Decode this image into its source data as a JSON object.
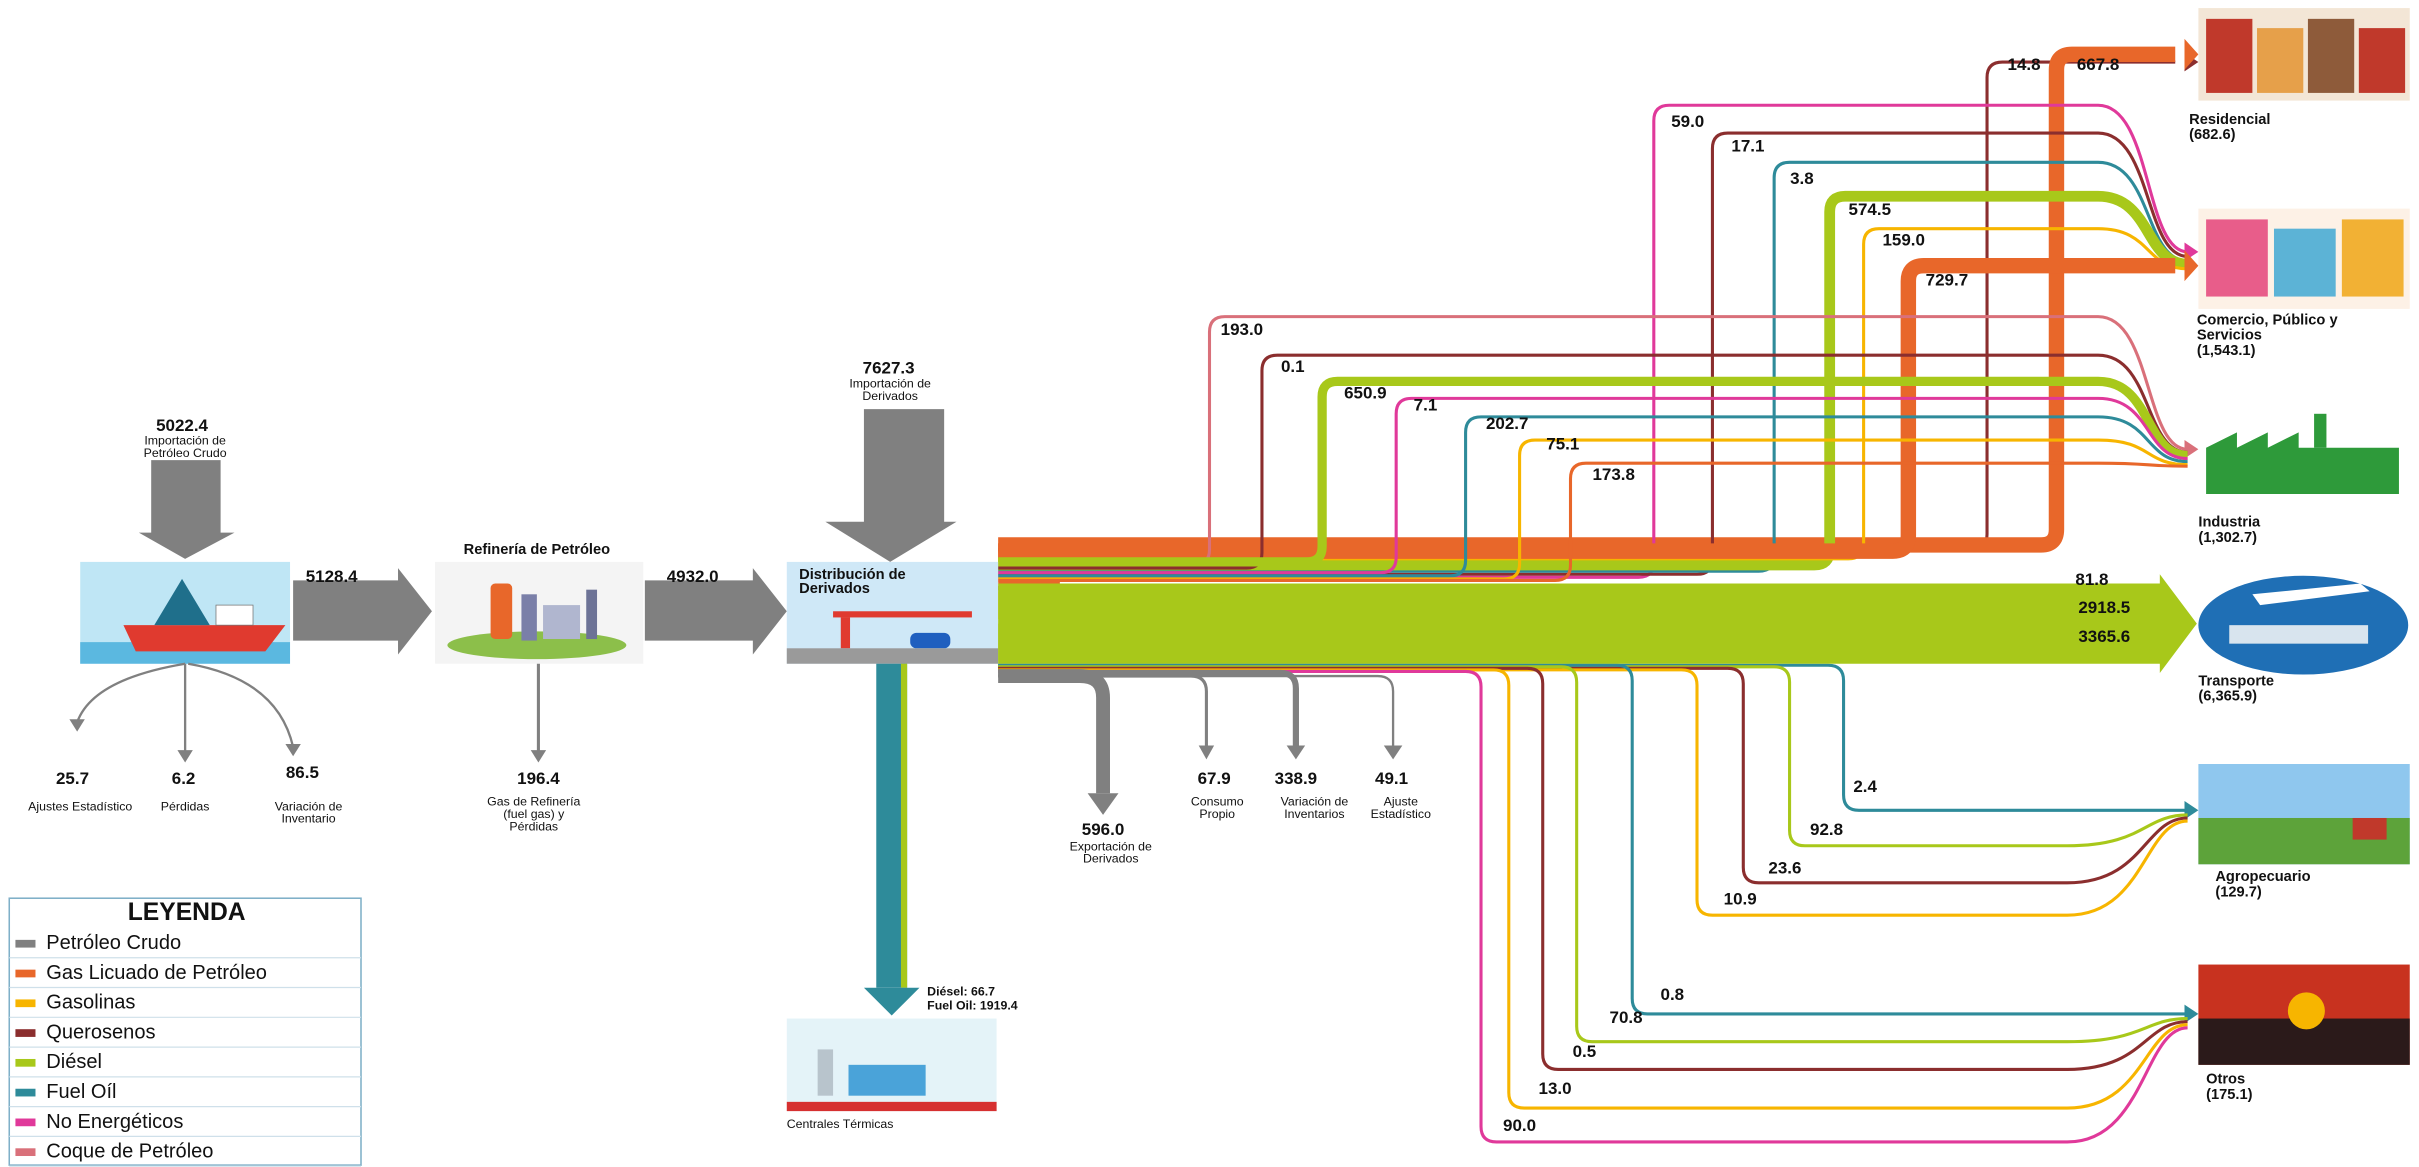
{
  "inputs": {
    "crude_import": {
      "value": "5022.4",
      "label": [
        "Importación de",
        "Petróleo Crudo"
      ]
    },
    "derivatives_import": {
      "value": "7627.3",
      "label": [
        "Importación de",
        "Derivados"
      ]
    }
  },
  "stages": {
    "crude_to_refinery": "5128.4",
    "refinery_title": "Refinería de Petróleo",
    "refinery_to_distribution": "4932.0",
    "distribution_title": [
      "Distribución de",
      "Derivados"
    ]
  },
  "crude_outputs": [
    {
      "value": "25.7",
      "label": [
        "Ajustes Estadístico"
      ]
    },
    {
      "value": "6.2",
      "label": [
        "Pérdidas"
      ]
    },
    {
      "value": "86.5",
      "label": [
        "Variación de",
        "Inventario"
      ]
    }
  ],
  "refinery_output": {
    "value": "196.4",
    "label": [
      "Gas de Refinería",
      "(fuel gas) y",
      "Pérdidas"
    ]
  },
  "distribution_outputs": [
    {
      "value": "596.0",
      "label": [
        "Exportación de",
        "Derivados"
      ]
    },
    {
      "value": "67.9",
      "label": [
        "Consumo",
        "Propio"
      ]
    },
    {
      "value": "338.9",
      "label": [
        "Variación de",
        "Inventarios"
      ]
    },
    {
      "value": "49.1",
      "label": [
        "Ajuste",
        "Estadístico"
      ]
    }
  ],
  "thermal": {
    "lines": [
      "Diésel: 66.7",
      "Fuel Oil: 1919.4"
    ],
    "label": "Centrales Térmicas"
  },
  "sectors": [
    {
      "name": [
        "Residencial"
      ],
      "total": "(682.6)"
    },
    {
      "name": [
        "Comercio, Público y",
        "Servicios"
      ],
      "total": "(1,543.1)"
    },
    {
      "name": [
        "Industria"
      ],
      "total": "(1,302.7)"
    },
    {
      "name": [
        "Transporte"
      ],
      "total": "(6,365.9)"
    },
    {
      "name": [
        "Agropecuario"
      ],
      "total": "(129.7)"
    },
    {
      "name": [
        "Otros"
      ],
      "total": "(175.1)"
    }
  ],
  "flows": [
    {
      "value": "14.8",
      "color": "#8b2e2e"
    },
    {
      "value": "667.8",
      "color": "#e8672a"
    },
    {
      "value": "59.0",
      "color": "#e0399a"
    },
    {
      "value": "17.1",
      "color": "#8b2e2e"
    },
    {
      "value": "3.8",
      "color": "#2e8b9a"
    },
    {
      "value": "574.5",
      "color": "#a8c81a"
    },
    {
      "value": "159.0",
      "color": "#f7b500"
    },
    {
      "value": "729.7",
      "color": "#e8672a"
    },
    {
      "value": "193.0",
      "color": "#d9707a"
    },
    {
      "value": "0.1",
      "color": "#8b2e2e"
    },
    {
      "value": "650.9",
      "color": "#a8c81a"
    },
    {
      "value": "7.1",
      "color": "#e0399a"
    },
    {
      "value": "202.7",
      "color": "#2e8b9a"
    },
    {
      "value": "75.1",
      "color": "#f7b500"
    },
    {
      "value": "173.8",
      "color": "#e8672a"
    },
    {
      "value": "81.8",
      "color": "#8b2e2e"
    },
    {
      "value": "2918.5",
      "color": "#f7b500"
    },
    {
      "value": "3365.6",
      "color": "#a8c81a"
    },
    {
      "value": "2.4",
      "color": "#2e8b9a"
    },
    {
      "value": "92.8",
      "color": "#a8c81a"
    },
    {
      "value": "23.6",
      "color": "#8b2e2e"
    },
    {
      "value": "10.9",
      "color": "#f7b500"
    },
    {
      "value": "0.8",
      "color": "#2e8b9a"
    },
    {
      "value": "70.8",
      "color": "#a8c81a"
    },
    {
      "value": "0.5",
      "color": "#8b2e2e"
    },
    {
      "value": "13.0",
      "color": "#f7b500"
    },
    {
      "value": "90.0",
      "color": "#e0399a"
    }
  ],
  "legend": {
    "title": "LEYENDA",
    "items": [
      {
        "label": "Petróleo Crudo",
        "color": "#808080"
      },
      {
        "label": "Gas Licuado de Petróleo",
        "color": "#e8672a"
      },
      {
        "label": "Gasolinas",
        "color": "#f7b500"
      },
      {
        "label": "Querosenos",
        "color": "#8b2e2e"
      },
      {
        "label": "Diésel",
        "color": "#a8c81a"
      },
      {
        "label": "Fuel Oíl",
        "color": "#2e8b9a"
      },
      {
        "label": "No Energéticos",
        "color": "#e0399a"
      },
      {
        "label": "Coque de Petróleo",
        "color": "#d9707a"
      }
    ]
  }
}
